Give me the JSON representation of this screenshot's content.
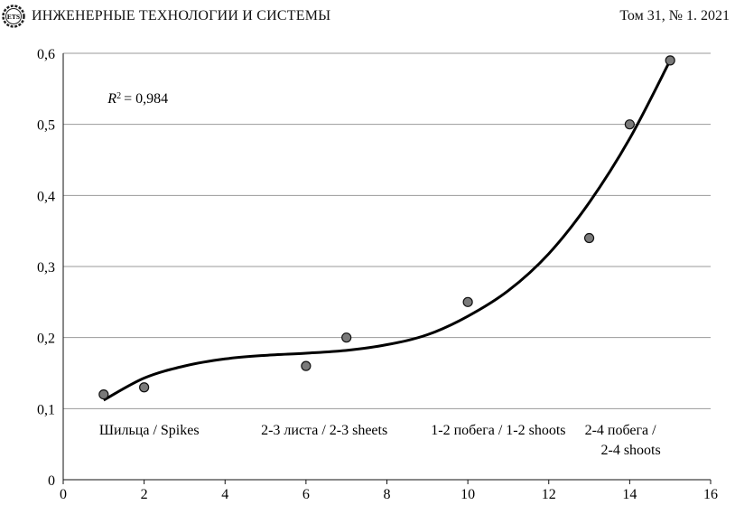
{
  "header": {
    "logo_text": "ETS",
    "journal_title": "ИНЖЕНЕРНЫЕ ТЕХНОЛОГИИ И СИСТЕМЫ",
    "issue": "Том 31, № 1. 2021"
  },
  "chart_data": {
    "type": "scatter",
    "title": "",
    "xlabel": "",
    "ylabel": "",
    "xlim": [
      0,
      16
    ],
    "ylim": [
      0,
      0.6
    ],
    "x_ticks": [
      0,
      2,
      4,
      6,
      8,
      10,
      12,
      14,
      16
    ],
    "y_ticks": [
      0,
      0.1,
      0.2,
      0.3,
      0.4,
      0.5,
      0.6
    ],
    "y_tick_labels": [
      "0",
      "0,1",
      "0,2",
      "0,3",
      "0,4",
      "0,5",
      "0,6"
    ],
    "grid": "horizontal",
    "points": [
      {
        "x": 1,
        "y": 0.12
      },
      {
        "x": 2,
        "y": 0.13
      },
      {
        "x": 6,
        "y": 0.16
      },
      {
        "x": 7,
        "y": 0.2
      },
      {
        "x": 10,
        "y": 0.25
      },
      {
        "x": 13,
        "y": 0.34
      },
      {
        "x": 14,
        "y": 0.5
      },
      {
        "x": 15,
        "y": 0.59
      }
    ],
    "trendline": {
      "type": "polynomial",
      "samples": [
        {
          "x": 1,
          "y": 0.112
        },
        {
          "x": 2,
          "y": 0.143
        },
        {
          "x": 3,
          "y": 0.16
        },
        {
          "x": 4,
          "y": 0.17
        },
        {
          "x": 5,
          "y": 0.175
        },
        {
          "x": 6,
          "y": 0.178
        },
        {
          "x": 7,
          "y": 0.182
        },
        {
          "x": 8,
          "y": 0.19
        },
        {
          "x": 9,
          "y": 0.204
        },
        {
          "x": 10,
          "y": 0.23
        },
        {
          "x": 11,
          "y": 0.266
        },
        {
          "x": 12,
          "y": 0.318
        },
        {
          "x": 13,
          "y": 0.39
        },
        {
          "x": 14,
          "y": 0.48
        },
        {
          "x": 15,
          "y": 0.59
        }
      ]
    },
    "r2_label": "= 0,984",
    "r2_symbol": "R",
    "r2_exponent": "2",
    "annotations": [
      {
        "x": 1,
        "y": 0.07,
        "text": "Шильца / Spikes"
      },
      {
        "x": 5,
        "y": 0.07,
        "text": "2-3 листа / 2-3 sheets"
      },
      {
        "x": 9.2,
        "y": 0.07,
        "text": "1-2 побега / 1-2 shoots"
      },
      {
        "x": 13.0,
        "y": 0.07,
        "text": "2-4 побега /"
      },
      {
        "x": 13.4,
        "y": 0.042,
        "text": "2-4 shoots"
      }
    ],
    "colors": {
      "point_fill": "#7a7a7a",
      "point_stroke": "#111111",
      "trend": "#000000",
      "grid": "#9a9a9a"
    }
  }
}
